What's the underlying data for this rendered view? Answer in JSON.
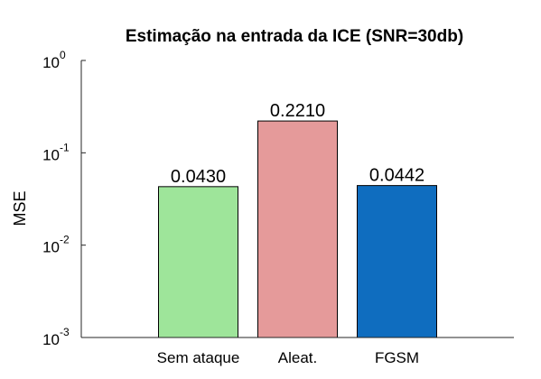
{
  "chart_data": {
    "type": "bar",
    "title": "Estimação na entrada da ICE (SNR=30db)",
    "xlabel": "",
    "ylabel": "MSE",
    "categories": [
      "Sem ataque",
      "Aleat.",
      "FGSM"
    ],
    "values": [
      0.043,
      0.221,
      0.0442
    ],
    "data_labels": [
      "0.0430",
      "0.2210",
      "0.0442"
    ],
    "colors": [
      "#9ee59a",
      "#e59a9a",
      "#0f6dbf"
    ],
    "ylim": [
      0.001,
      1
    ],
    "yscale": "log",
    "yticks": [
      {
        "base": "10",
        "exp": "0"
      },
      {
        "base": "10",
        "exp": "-1"
      },
      {
        "base": "10",
        "exp": "-2"
      },
      {
        "base": "10",
        "exp": "-3"
      }
    ],
    "ytick_values": [
      1,
      0.1,
      0.01,
      0.001
    ],
    "grid": false,
    "legend": "none"
  }
}
